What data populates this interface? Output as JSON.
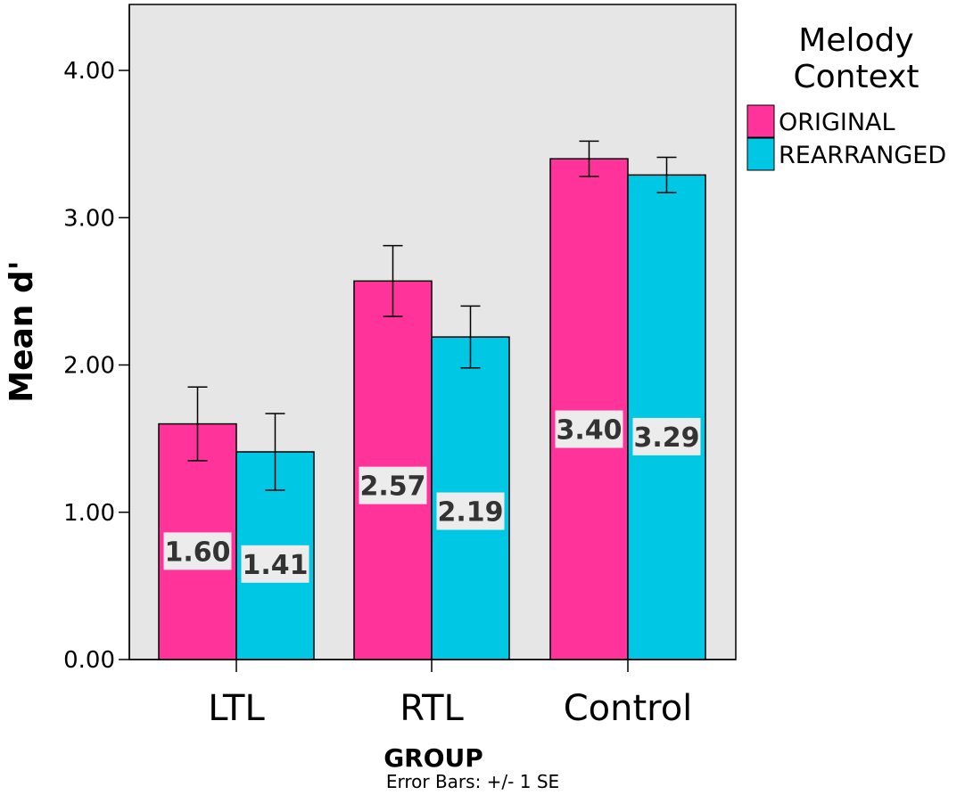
{
  "chart_data": {
    "type": "bar",
    "categories": [
      "LTL",
      "RTL",
      "Control"
    ],
    "series": [
      {
        "name": "ORIGINAL",
        "color": "#ff3399",
        "values": [
          1.6,
          2.57,
          3.4
        ],
        "se": [
          0.25,
          0.24,
          0.12
        ]
      },
      {
        "name": "REARRANGED",
        "color": "#00c8e4",
        "values": [
          1.41,
          2.19,
          3.29
        ],
        "se": [
          0.26,
          0.21,
          0.12
        ]
      }
    ],
    "data_labels": [
      [
        "1.60",
        "2.57",
        "3.40"
      ],
      [
        "1.41",
        "2.19",
        "3.29"
      ]
    ],
    "xlabel": "GROUP",
    "ylabel": "Mean d'",
    "ylim": [
      0,
      4.4
    ],
    "yticks": [
      0,
      1,
      2,
      3,
      4
    ],
    "ytick_labels": [
      "0.00",
      "1.00",
      "2.00",
      "3.00",
      "4.00"
    ],
    "legend_title": [
      "Melody",
      "Context"
    ],
    "legend_placement": "top-right",
    "note": "Error Bars: +/- 1 SE",
    "grid": false,
    "plot_background": "#e6e6e6"
  }
}
